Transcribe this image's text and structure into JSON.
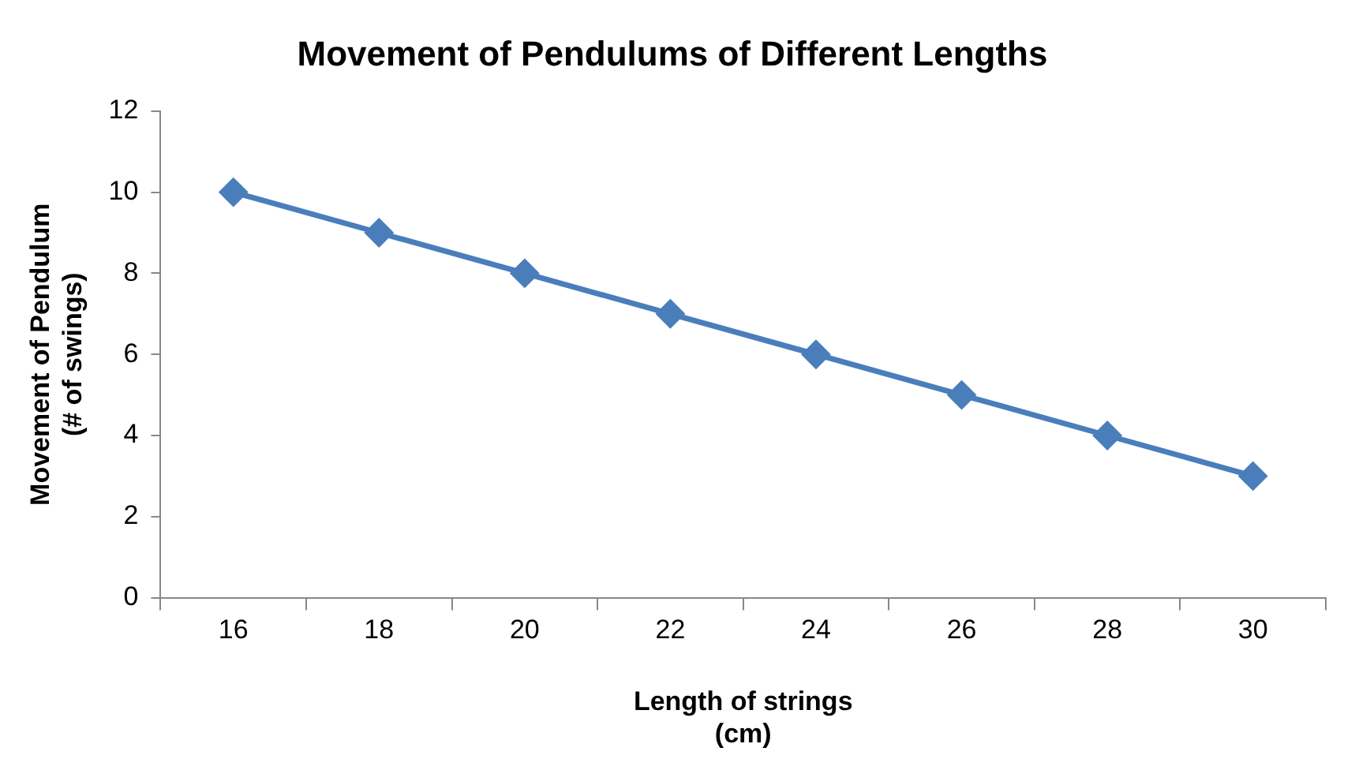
{
  "chart_data": {
    "type": "line",
    "title": "Movement of Pendulums of Different Lengths",
    "xlabel": "Length of strings\n(cm)",
    "ylabel": "Movement of Pendulum\n(# of swings)",
    "categories": [
      "16",
      "18",
      "20",
      "22",
      "24",
      "26",
      "28",
      "30"
    ],
    "series": [
      {
        "color": "#4a7ebb",
        "values": [
          10,
          9,
          8,
          7,
          6,
          5,
          4,
          3
        ]
      }
    ],
    "ylim": [
      0,
      12
    ],
    "yticks": [
      0,
      2,
      4,
      6,
      8,
      10,
      12
    ],
    "marker": "diamond",
    "line_style": "solid"
  }
}
